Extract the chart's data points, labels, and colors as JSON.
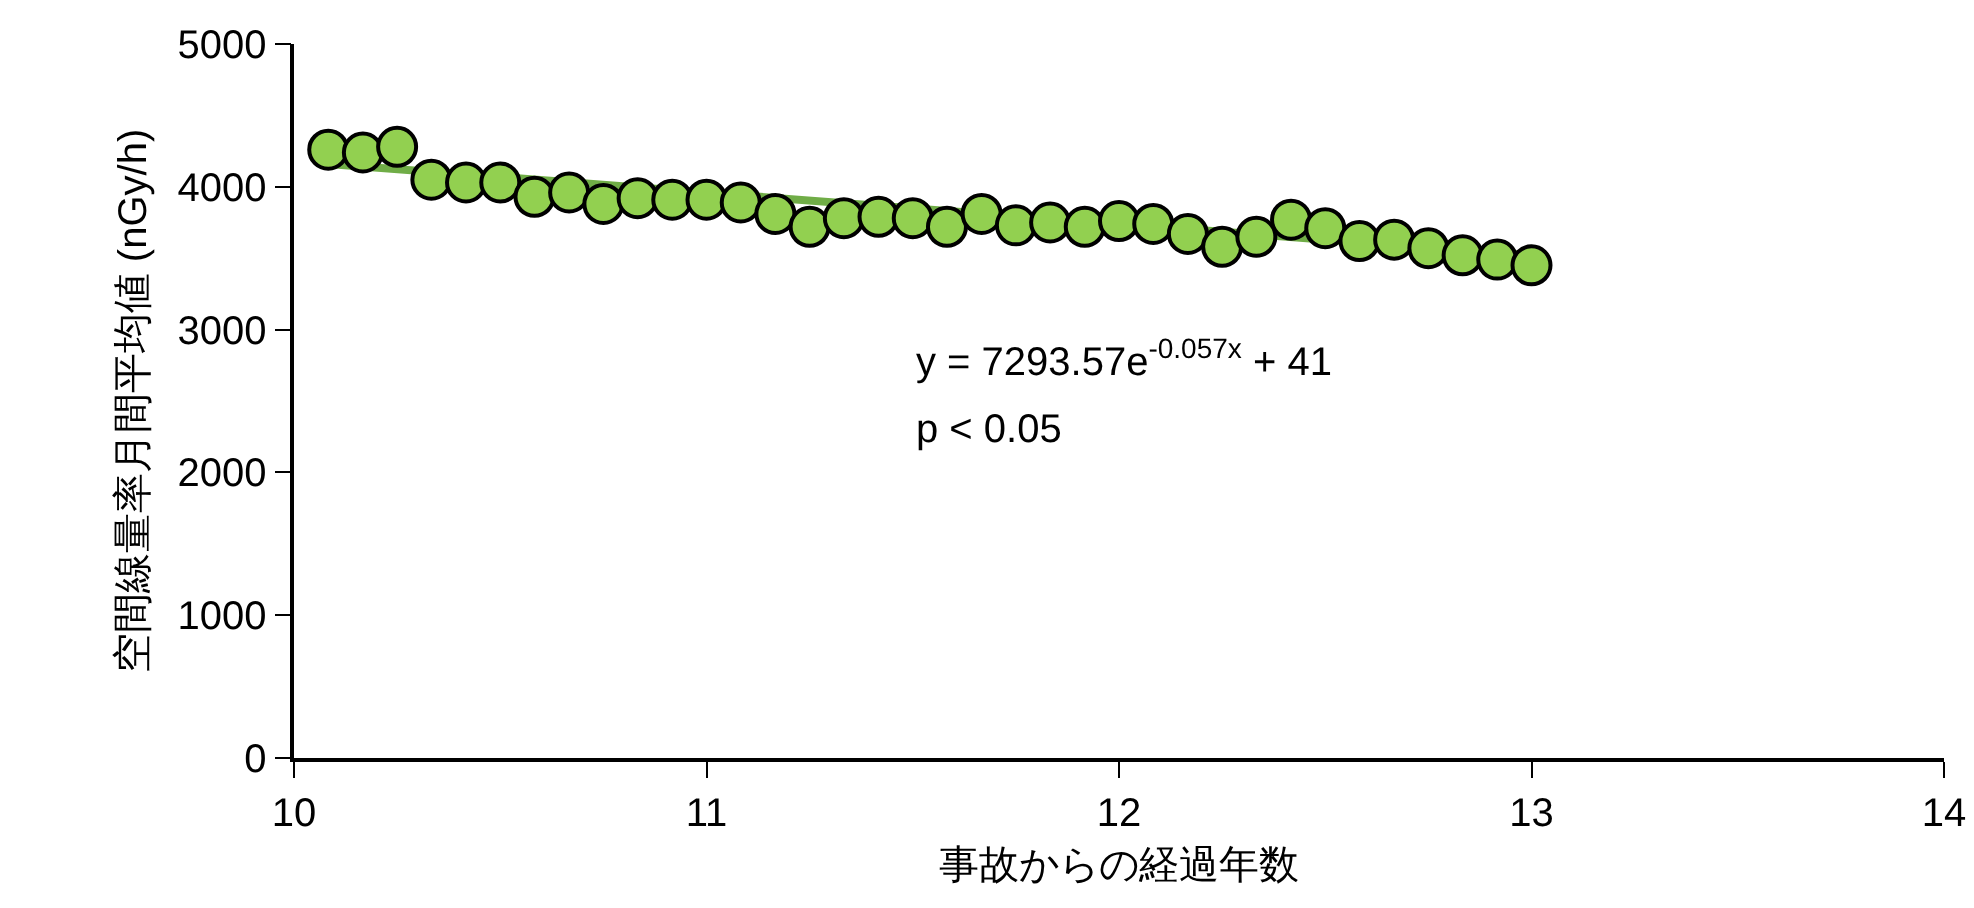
{
  "chart_data": {
    "type": "scatter",
    "xlabel": "事故からの経過年数",
    "ylabel": "空間線量率月間平均値 (nGy/h)",
    "xlim": [
      10,
      14
    ],
    "xticks": [
      10,
      11,
      12,
      13,
      14
    ],
    "ylim": [
      0,
      5000
    ],
    "yticks": [
      0,
      1000,
      2000,
      3000,
      4000,
      5000
    ],
    "grid": false,
    "marker": "circle",
    "series": [
      {
        "type": "line",
        "marker": "none",
        "color": "#70ad47",
        "x": [
          10.083,
          13.0
        ],
        "values": [
          4160,
          3520
        ]
      },
      {
        "color": "#92d050",
        "x": [
          10.083,
          10.167,
          10.25,
          10.333,
          10.417,
          10.5,
          10.583,
          10.667,
          10.75,
          10.833,
          10.917,
          11.0,
          11.083,
          11.167,
          11.25,
          11.333,
          11.417,
          11.5,
          11.583,
          11.667,
          11.75,
          11.833,
          11.917,
          12.0,
          12.083,
          12.167,
          12.25,
          12.333,
          12.417,
          12.5,
          12.583,
          12.667,
          12.75,
          12.833,
          12.917,
          13.0
        ],
        "values": [
          4260,
          4240,
          4280,
          4050,
          4030,
          4030,
          3930,
          3960,
          3880,
          3920,
          3910,
          3910,
          3890,
          3810,
          3720,
          3780,
          3790,
          3780,
          3720,
          3810,
          3730,
          3750,
          3720,
          3760,
          3740,
          3670,
          3580,
          3650,
          3770,
          3710,
          3620,
          3630,
          3570,
          3520,
          3490,
          3450
        ]
      }
    ],
    "annotations": [
      "y = 7293.57e$^{-0.057x}$ + 41",
      "p < 0.05"
    ]
  }
}
